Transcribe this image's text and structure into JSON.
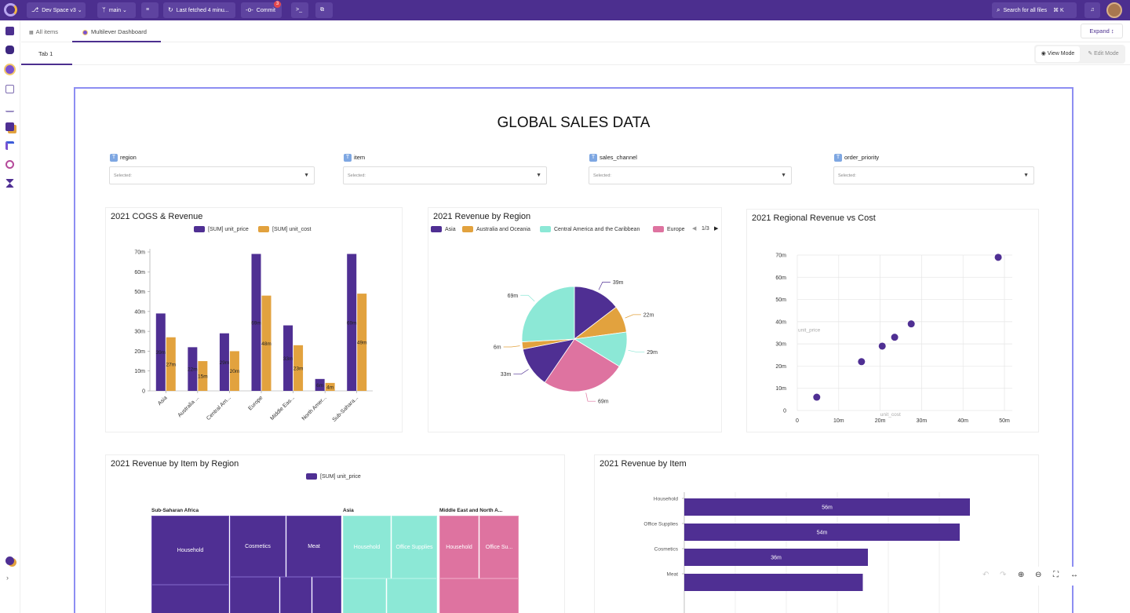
{
  "topbar": {
    "space": "Dev Space v3",
    "branch": "main",
    "fetched": "Last fetched 4 minu...",
    "commit": "Commit",
    "commit_badge": "3",
    "search": "Search for all files",
    "shortcut": "⌘ K"
  },
  "tabs": {
    "all_items": "All items",
    "dashboard": "Multilever Dashboard",
    "expand": "Expand"
  },
  "subtabs": {
    "tab1": "Tab 1",
    "view_mode": "View Mode",
    "edit_mode": "Edit Mode"
  },
  "dashboard": {
    "title": "GLOBAL SALES DATA"
  },
  "filters": [
    {
      "label": "region",
      "placeholder": "Selected:"
    },
    {
      "label": "item",
      "placeholder": "Selected:"
    },
    {
      "label": "sales_channel",
      "placeholder": "Selected:"
    },
    {
      "label": "order_priority",
      "placeholder": "Selected:"
    }
  ],
  "colors": {
    "purple": "#4f2f93",
    "orange": "#e2a23e",
    "teal": "#8ce8d6",
    "pink": "#de73a0",
    "brand": "#4c2f8f",
    "canvas_border": "#8d8ef2"
  },
  "chart_data": [
    {
      "type": "bar",
      "title": "2021 COGS & Revenue",
      "categories": [
        "Asia",
        "Australia ...",
        "Central Am...",
        "Europe",
        "Middle Eas...",
        "North Amer...",
        "Sub-Sahara..."
      ],
      "series": [
        {
          "name": "[SUM] unit_price",
          "values": [
            39,
            22,
            29,
            69,
            33,
            6,
            69
          ],
          "labels": [
            "39m",
            "22m",
            "29m",
            "69m",
            "33m",
            "6m",
            "69m"
          ]
        },
        {
          "name": "[SUM] unit_cost",
          "values": [
            27,
            15,
            20,
            48,
            23,
            4,
            49
          ],
          "labels": [
            "27m",
            "15m",
            "20m",
            "48m",
            "23m",
            "4m",
            "49m"
          ]
        }
      ],
      "yticks": [
        "0",
        "10m",
        "20m",
        "30m",
        "40m",
        "50m",
        "60m",
        "70m"
      ],
      "ylim": [
        0,
        70
      ],
      "legend": "top"
    },
    {
      "type": "pie",
      "title": "2021 Revenue by Region",
      "legend_items": [
        "Asia",
        "Australia and Oceania",
        "Central America and the Caribbean",
        "Europe"
      ],
      "legend_page": "1/3",
      "slices": [
        {
          "name": "Asia",
          "value": 39,
          "label": "39m",
          "color": "#4f2f93"
        },
        {
          "name": "Australia and Oceania",
          "value": 22,
          "label": "22m",
          "color": "#e2a23e"
        },
        {
          "name": "Central America and the Caribbean",
          "value": 29,
          "label": "29m",
          "color": "#8ce8d6"
        },
        {
          "name": "Europe",
          "value": 69,
          "label": "69m",
          "color": "#de73a0"
        },
        {
          "name": "",
          "value": 33,
          "label": "33m",
          "color": "#4f2f93"
        },
        {
          "name": "",
          "value": 6,
          "label": "6m",
          "color": "#e2a23e"
        },
        {
          "name": "",
          "value": 69,
          "label": "69m",
          "color": "#8ce8d6"
        }
      ]
    },
    {
      "type": "scatter",
      "title": "2021 Regional Revenue vs Cost",
      "xlabel": "unit_cost",
      "ylabel": "unit_price",
      "points": [
        [
          4.7,
          6
        ],
        [
          15.5,
          22
        ],
        [
          20.5,
          29
        ],
        [
          23.5,
          33
        ],
        [
          27.5,
          39
        ],
        [
          48.5,
          69
        ]
      ],
      "xticks": [
        "0",
        "10m",
        "20m",
        "30m",
        "40m",
        "50m"
      ],
      "yticks": [
        "0",
        "10m",
        "20m",
        "30m",
        "40m",
        "50m",
        "60m",
        "70m"
      ],
      "xlim": [
        0,
        50
      ],
      "ylim": [
        0,
        70
      ]
    },
    {
      "type": "heatmap",
      "title": "2021 Revenue by Item by Region",
      "legend": "[SUM] unit_price",
      "groups": [
        {
          "name": "Sub-Saharan Africa",
          "cells": [
            "Household",
            "Cosmetics",
            "Meat"
          ]
        },
        {
          "name": "Asia",
          "cells": [
            "Household",
            "Office Supplies"
          ]
        },
        {
          "name": "Middle East and North A...",
          "cells": [
            "Household",
            "Office Su..."
          ]
        }
      ]
    },
    {
      "type": "bar",
      "title": "2021 Revenue by Item",
      "categories": [
        "Household",
        "Office Supplies",
        "Cosmetics",
        "Meat"
      ],
      "values": [
        56,
        54,
        36,
        35
      ],
      "labels": [
        "56m",
        "54m",
        "36m",
        ""
      ],
      "orientation": "horizontal"
    }
  ]
}
